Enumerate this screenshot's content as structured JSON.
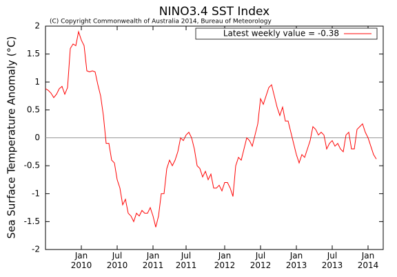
{
  "chart_data": {
    "type": "line",
    "title": "NINO3.4 SST Index",
    "subtitle": "(C) Copyright Commonwealth of Australia 2014, Bureau of Meteorology",
    "y_label": "Sea Surface Temperature Anomaly (°C)",
    "ylim": [
      -2,
      2
    ],
    "yticks": [
      -2,
      -1.5,
      -1,
      -0.5,
      0,
      0.5,
      1,
      1.5,
      2
    ],
    "hline": 0,
    "legend": "upper right",
    "categories": [
      null,
      null,
      null,
      null,
      null,
      null,
      null,
      null,
      null,
      null,
      null,
      null,
      null,
      "Jan\n2010",
      null,
      null,
      null,
      null,
      null,
      null,
      null,
      null,
      null,
      null,
      null,
      null,
      "Jul\n2010",
      null,
      null,
      null,
      null,
      null,
      null,
      null,
      null,
      null,
      null,
      null,
      null,
      "Jan\n2011",
      null,
      null,
      null,
      null,
      null,
      null,
      null,
      null,
      null,
      null,
      null,
      "Jul\n2011",
      null,
      null,
      null,
      null,
      null,
      null,
      null,
      null,
      null,
      null,
      null,
      null,
      null,
      "Jan\n2012",
      null,
      null,
      null,
      null,
      null,
      null,
      null,
      null,
      null,
      null,
      null,
      null,
      "Jul\n2012",
      null,
      null,
      null,
      null,
      null,
      null,
      null,
      null,
      null,
      null,
      null,
      null,
      "Jan\n2013",
      null,
      null,
      null,
      null,
      null,
      null,
      null,
      null,
      null,
      null,
      null,
      null,
      "Jul\n2013",
      null,
      null,
      null,
      null,
      null,
      null,
      null,
      null,
      null,
      null,
      null,
      null,
      "Jan\n2014",
      null,
      null,
      null
    ],
    "series": [
      {
        "name": "Latest weekly value = -0.38",
        "color": "#ff0000",
        "values": [
          0.88,
          0.85,
          0.8,
          0.72,
          0.78,
          0.88,
          0.92,
          0.78,
          0.9,
          1.6,
          1.68,
          1.65,
          1.9,
          1.75,
          1.65,
          1.2,
          1.18,
          1.2,
          1.18,
          0.95,
          0.75,
          0.4,
          -0.1,
          -0.1,
          -0.4,
          -0.45,
          -0.75,
          -0.9,
          -1.2,
          -1.1,
          -1.35,
          -1.4,
          -1.5,
          -1.35,
          -1.4,
          -1.3,
          -1.35,
          -1.35,
          -1.25,
          -1.4,
          -1.6,
          -1.4,
          -1.0,
          -1.0,
          -0.55,
          -0.4,
          -0.5,
          -0.4,
          -0.25,
          0.0,
          -0.05,
          0.05,
          0.1,
          0.0,
          -0.2,
          -0.5,
          -0.55,
          -0.7,
          -0.6,
          -0.75,
          -0.65,
          -0.9,
          -0.9,
          -0.85,
          -0.95,
          -0.8,
          -0.8,
          -0.9,
          -1.05,
          -0.5,
          -0.35,
          -0.4,
          -0.2,
          0.0,
          -0.05,
          -0.15,
          0.05,
          0.25,
          0.7,
          0.6,
          0.75,
          0.9,
          0.95,
          0.75,
          0.55,
          0.4,
          0.55,
          0.3,
          0.3,
          0.1,
          -0.1,
          -0.3,
          -0.45,
          -0.3,
          -0.35,
          -0.2,
          -0.05,
          0.2,
          0.15,
          0.05,
          0.1,
          0.05,
          -0.2,
          -0.1,
          -0.05,
          -0.15,
          -0.1,
          -0.2,
          -0.25,
          0.05,
          0.1,
          -0.2,
          -0.2,
          0.15,
          0.2,
          0.25,
          0.1,
          0.0,
          -0.15,
          -0.3,
          -0.38
        ]
      }
    ]
  }
}
